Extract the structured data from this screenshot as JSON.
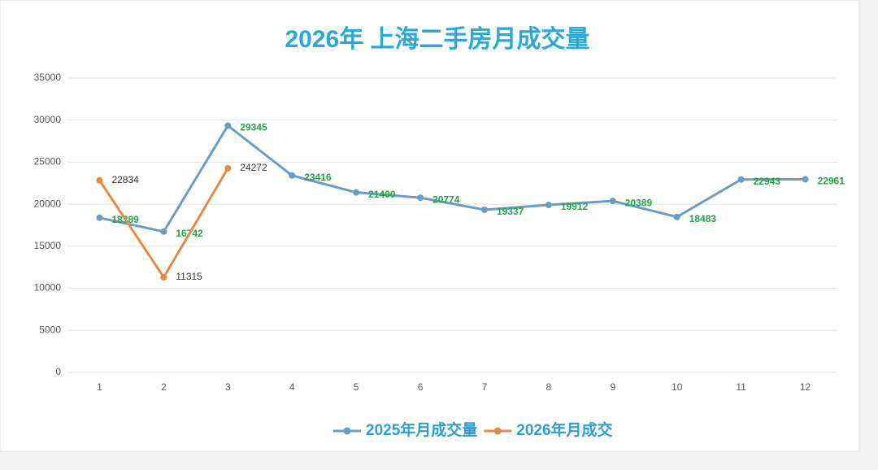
{
  "chart_data": {
    "type": "line",
    "title": "2026年 上海二手房月成交量",
    "categories": [
      "1",
      "2",
      "3",
      "4",
      "5",
      "6",
      "7",
      "8",
      "9",
      "10",
      "11",
      "12"
    ],
    "series": [
      {
        "name": "2025年月成交量",
        "color": "#6a9cc6",
        "label_color": "#1fa448",
        "values": [
          18389,
          16742,
          29345,
          23416,
          21400,
          20774,
          19337,
          19912,
          20389,
          18483,
          22943,
          22961
        ]
      },
      {
        "name": "2026年月成交",
        "color": "#e08a45",
        "label_color": "#333333",
        "values": [
          22834,
          11315,
          24272,
          null,
          null,
          null,
          null,
          null,
          null,
          null,
          null,
          null
        ]
      }
    ],
    "ylim": [
      0,
      35000
    ],
    "yticks": [
      0,
      5000,
      10000,
      15000,
      20000,
      25000,
      30000,
      35000
    ],
    "grid": true,
    "legend": "bottom"
  }
}
